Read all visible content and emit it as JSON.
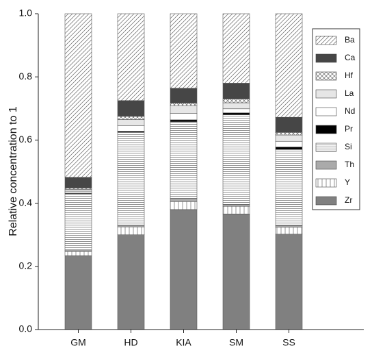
{
  "chart_data": {
    "type": "stacked_bar",
    "y_label": "Relative concentration to 1",
    "categories": [
      "GM",
      "HD",
      "KIA",
      "SM",
      "SS"
    ],
    "ylim": [
      0,
      1
    ],
    "yticks": [
      {
        "value": 0,
        "label": "0.0"
      },
      0.2,
      0.4,
      0.6,
      0.8,
      {
        "value": 1,
        "label": "1.0"
      }
    ],
    "legend": "upper right",
    "series": [
      {
        "name": "Zr",
        "color": "#808080",
        "pattern": "solid",
        "values": [
          0.234,
          0.3,
          0.38,
          0.366,
          0.302
        ]
      },
      {
        "name": "Y",
        "color": "#ffffff",
        "pattern": "vertical",
        "values": [
          0.013,
          0.025,
          0.025,
          0.024,
          0.022
        ]
      },
      {
        "name": "Th",
        "color": "#aaaaaa",
        "pattern": "solid",
        "values": [
          0.003,
          0.005,
          0.01,
          0.006,
          0.005
        ]
      },
      {
        "name": "Si",
        "color": "#ffffff",
        "pattern": "horizontal",
        "values": [
          0.18,
          0.295,
          0.243,
          0.284,
          0.241
        ]
      },
      {
        "name": "Pr",
        "color": "#000000",
        "pattern": "solid",
        "values": [
          0.002,
          0.003,
          0.006,
          0.006,
          0.008
        ]
      },
      {
        "name": "Nd",
        "color": "#ffffff",
        "pattern": "solid",
        "values": [
          0.006,
          0.017,
          0.02,
          0.013,
          0.018
        ]
      },
      {
        "name": "La",
        "color": "#e6e6e6",
        "pattern": "solid",
        "values": [
          0.006,
          0.02,
          0.025,
          0.019,
          0.02
        ]
      },
      {
        "name": "Hf",
        "color": "#ffffff",
        "pattern": "crosshatch",
        "values": [
          0.004,
          0.01,
          0.008,
          0.012,
          0.008
        ]
      },
      {
        "name": "Ca",
        "color": "#464646",
        "pattern": "solid",
        "values": [
          0.034,
          0.05,
          0.047,
          0.05,
          0.048
        ]
      },
      {
        "name": "Ba",
        "color": "#ffffff",
        "pattern": "diagonal",
        "values": [
          0.518,
          0.275,
          0.236,
          0.22,
          0.328
        ]
      }
    ]
  }
}
